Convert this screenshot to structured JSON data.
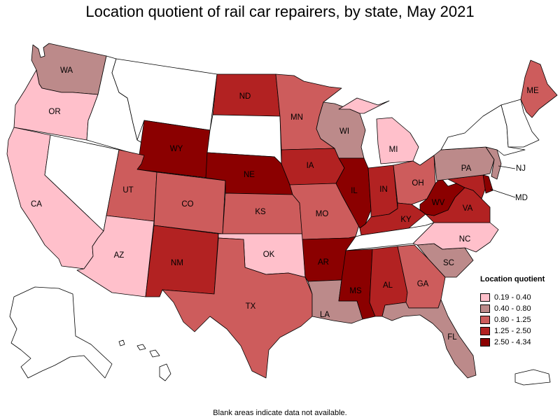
{
  "title": "Location quotient of rail car repairers, by state, May 2021",
  "footnote": "Blank areas indicate data not available.",
  "legend": {
    "title": "Location quotient",
    "items": [
      {
        "label": "0.19 - 0.40",
        "color": "#ffc0cb"
      },
      {
        "label": "0.40 - 0.80",
        "color": "#bc8a8a"
      },
      {
        "label": "0.80 - 1.25",
        "color": "#cd5c5c"
      },
      {
        "label": "1.25 - 2.50",
        "color": "#b22222"
      },
      {
        "label": "2.50 - 4.34",
        "color": "#8b0000"
      }
    ]
  },
  "states": {
    "WA": {
      "label": "WA",
      "class": "0.40 - 0.80"
    },
    "OR": {
      "label": "OR",
      "class": "0.19 - 0.40"
    },
    "CA": {
      "label": "CA",
      "class": "0.19 - 0.40"
    },
    "NV": {
      "label": "",
      "class": "none"
    },
    "ID": {
      "label": "",
      "class": "none"
    },
    "MT": {
      "label": "",
      "class": "none"
    },
    "WY": {
      "label": "WY",
      "class": "2.50 - 4.34"
    },
    "UT": {
      "label": "UT",
      "class": "0.80 - 1.25"
    },
    "AZ": {
      "label": "AZ",
      "class": "0.19 - 0.40"
    },
    "CO": {
      "label": "CO",
      "class": "0.80 - 1.25"
    },
    "NM": {
      "label": "NM",
      "class": "1.25 - 2.50"
    },
    "ND": {
      "label": "ND",
      "class": "1.25 - 2.50"
    },
    "SD": {
      "label": "",
      "class": "none"
    },
    "NE": {
      "label": "NE",
      "class": "2.50 - 4.34"
    },
    "KS": {
      "label": "KS",
      "class": "0.80 - 1.25"
    },
    "OK": {
      "label": "OK",
      "class": "0.19 - 0.40"
    },
    "TX": {
      "label": "TX",
      "class": "0.80 - 1.25"
    },
    "MN": {
      "label": "MN",
      "class": "0.80 - 1.25"
    },
    "IA": {
      "label": "IA",
      "class": "1.25 - 2.50"
    },
    "MO": {
      "label": "MO",
      "class": "0.80 - 1.25"
    },
    "AR": {
      "label": "AR",
      "class": "2.50 - 4.34"
    },
    "LA": {
      "label": "LA",
      "class": "0.40 - 0.80"
    },
    "WI": {
      "label": "WI",
      "class": "0.40 - 0.80"
    },
    "IL": {
      "label": "IL",
      "class": "2.50 - 4.34"
    },
    "MI": {
      "label": "MI",
      "class": "0.19 - 0.40"
    },
    "IN": {
      "label": "IN",
      "class": "1.25 - 2.50"
    },
    "OH": {
      "label": "OH",
      "class": "0.80 - 1.25"
    },
    "KY": {
      "label": "KY",
      "class": "1.25 - 2.50"
    },
    "TN": {
      "label": "",
      "class": "none"
    },
    "MS": {
      "label": "MS",
      "class": "2.50 - 4.34"
    },
    "AL": {
      "label": "AL",
      "class": "1.25 - 2.50"
    },
    "GA": {
      "label": "GA",
      "class": "0.80 - 1.25"
    },
    "FL": {
      "label": "FL",
      "class": "0.40 - 0.80"
    },
    "SC": {
      "label": "SC",
      "class": "0.40 - 0.80"
    },
    "NC": {
      "label": "NC",
      "class": "0.19 - 0.40"
    },
    "VA": {
      "label": "VA",
      "class": "1.25 - 2.50"
    },
    "WV": {
      "label": "WV",
      "class": "2.50 - 4.34"
    },
    "PA": {
      "label": "PA",
      "class": "0.40 - 0.80"
    },
    "NY": {
      "label": "",
      "class": "none"
    },
    "NJ": {
      "label": "NJ",
      "class": "0.40 - 0.80"
    },
    "MD": {
      "label": "MD",
      "class": "1.25 - 2.50"
    },
    "DE": {
      "label": "",
      "class": "2.50 - 4.34"
    },
    "ME": {
      "label": "ME",
      "class": "0.80 - 1.25"
    },
    "NE_small": {
      "label": "",
      "class": "none"
    },
    "AK": {
      "label": "",
      "class": "none"
    },
    "HI": {
      "label": "",
      "class": "none"
    },
    "PR": {
      "label": "",
      "class": "none"
    }
  }
}
